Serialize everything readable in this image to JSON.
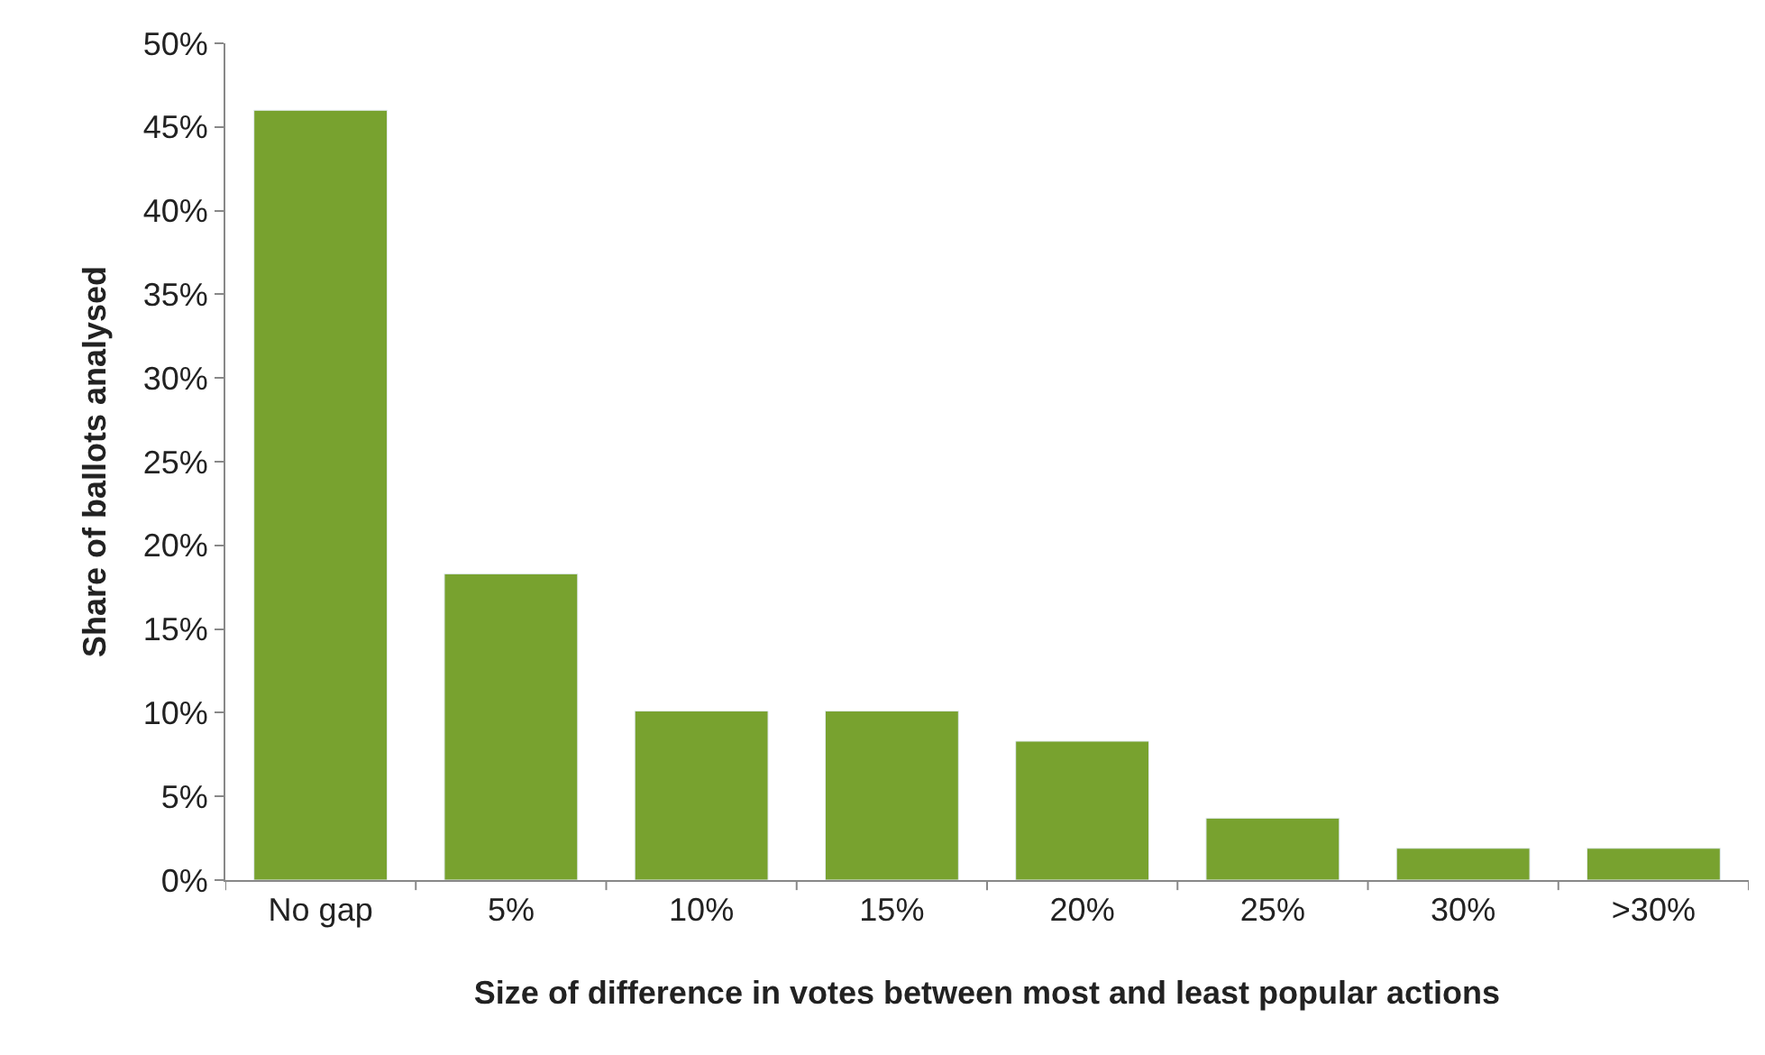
{
  "chart_data": {
    "type": "bar",
    "xlabel": "Size of difference in votes between most and least popular actions",
    "ylabel": "Share of ballots analysed",
    "categories": [
      "No gap",
      "5%",
      "10%",
      "15%",
      "20%",
      "25%",
      "30%",
      ">30%"
    ],
    "values": [
      46,
      18.3,
      10.1,
      10.1,
      8.3,
      3.7,
      1.9,
      1.9
    ],
    "color": "#78a22f",
    "ylim": [
      0,
      50
    ],
    "yticks": [
      {
        "value": 0,
        "label": "0%"
      },
      {
        "value": 5,
        "label": "5%"
      },
      {
        "value": 10,
        "label": "10%"
      },
      {
        "value": 15,
        "label": "15%"
      },
      {
        "value": 20,
        "label": "20%"
      },
      {
        "value": 25,
        "label": "25%"
      },
      {
        "value": 30,
        "label": "30%"
      },
      {
        "value": 35,
        "label": "35%"
      },
      {
        "value": 40,
        "label": "40%"
      },
      {
        "value": 45,
        "label": "45%"
      },
      {
        "value": 50,
        "label": "50%"
      }
    ],
    "legend": false
  }
}
